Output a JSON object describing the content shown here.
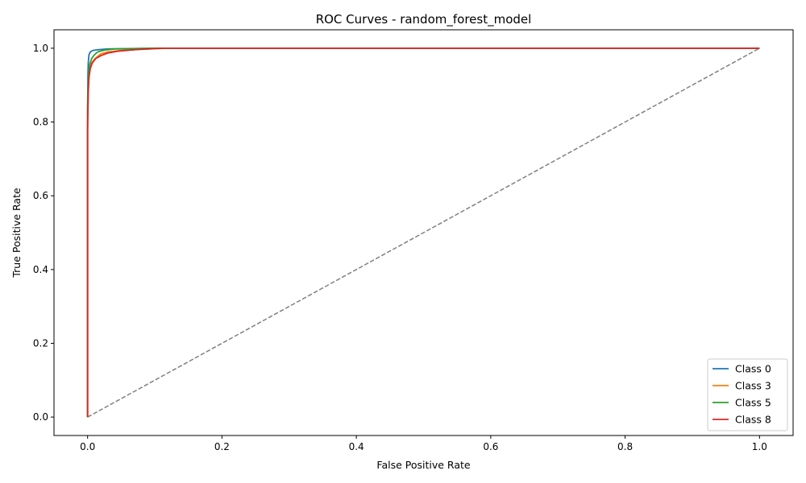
{
  "chart_data": {
    "type": "line",
    "title": "ROC Curves - random_forest_model",
    "xlabel": "False Positive Rate",
    "ylabel": "True Positive Rate",
    "xlim": [
      -0.05,
      1.05
    ],
    "ylim": [
      -0.05,
      1.05
    ],
    "xticks": [
      0.0,
      0.2,
      0.4,
      0.6,
      0.8,
      1.0
    ],
    "yticks": [
      0.0,
      0.2,
      0.4,
      0.6,
      0.8,
      1.0
    ],
    "xtick_labels": [
      "0.0",
      "0.2",
      "0.4",
      "0.6",
      "0.8",
      "1.0"
    ],
    "ytick_labels": [
      "0.0",
      "0.2",
      "0.4",
      "0.6",
      "0.8",
      "1.0"
    ],
    "grid": false,
    "legend_position": "lower-right",
    "series": [
      {
        "name": "Class 0",
        "color": "#1f77b4",
        "x": [
          0.0,
          0.0,
          0.0005,
          0.001,
          0.002,
          0.004,
          0.008,
          0.015,
          0.03,
          0.06,
          0.1,
          1.0
        ],
        "y": [
          0.0,
          0.82,
          0.93,
          0.96,
          0.982,
          0.99,
          0.994,
          0.996,
          0.998,
          0.999,
          1.0,
          1.0
        ]
      },
      {
        "name": "Class 3",
        "color": "#ff7f0e",
        "x": [
          0.0,
          0.0,
          0.001,
          0.003,
          0.006,
          0.01,
          0.015,
          0.02,
          0.03,
          0.05,
          0.08,
          0.12,
          1.0
        ],
        "y": [
          0.0,
          0.8,
          0.9,
          0.94,
          0.96,
          0.97,
          0.978,
          0.985,
          0.99,
          0.994,
          0.997,
          1.0,
          1.0
        ]
      },
      {
        "name": "Class 5",
        "color": "#2ca02c",
        "x": [
          0.0,
          0.0,
          0.001,
          0.003,
          0.006,
          0.01,
          0.015,
          0.025,
          0.04,
          0.07,
          0.1,
          1.0
        ],
        "y": [
          0.0,
          0.84,
          0.92,
          0.955,
          0.972,
          0.982,
          0.99,
          0.995,
          0.998,
          0.999,
          1.0,
          1.0
        ]
      },
      {
        "name": "Class 8",
        "color": "#d62728",
        "x": [
          0.0,
          0.0,
          0.001,
          0.002,
          0.004,
          0.007,
          0.012,
          0.02,
          0.03,
          0.045,
          0.07,
          0.11,
          1.0
        ],
        "y": [
          0.0,
          0.78,
          0.88,
          0.92,
          0.945,
          0.96,
          0.972,
          0.98,
          0.987,
          0.992,
          0.996,
          1.0,
          1.0
        ]
      }
    ],
    "reference_line": {
      "style": "dashed",
      "color": "#808080",
      "x": [
        0.0,
        1.0
      ],
      "y": [
        0.0,
        1.0
      ]
    }
  }
}
